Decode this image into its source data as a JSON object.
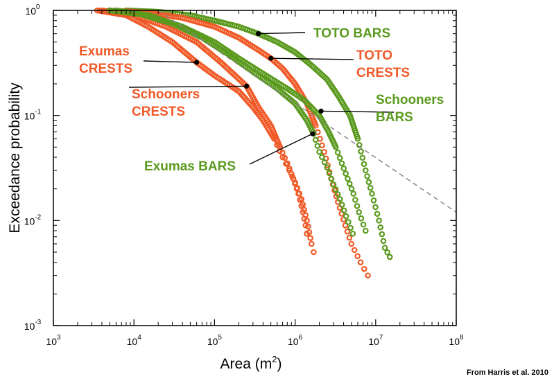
{
  "chart_data": {
    "type": "scatter",
    "title": "",
    "xlabel": "Area (m",
    "xlabel_sup": "2",
    "xlabel_close": ")",
    "ylabel": "Exceedance probability",
    "xscale": "log",
    "yscale": "log",
    "xlim": [
      1000,
      100000000
    ],
    "ylim": [
      0.001,
      1
    ],
    "x_ticks": [
      {
        "base": "10",
        "exp": "3",
        "value": 1000
      },
      {
        "base": "10",
        "exp": "4",
        "value": 10000
      },
      {
        "base": "10",
        "exp": "5",
        "value": 100000
      },
      {
        "base": "10",
        "exp": "6",
        "value": 1000000
      },
      {
        "base": "10",
        "exp": "7",
        "value": 10000000
      },
      {
        "base": "10",
        "exp": "8",
        "value": 100000000
      }
    ],
    "y_ticks": [
      {
        "base": "10",
        "exp": "0",
        "value": 1
      },
      {
        "base": "10",
        "exp": "-1",
        "value": 0.1
      },
      {
        "base": "10",
        "exp": "-2",
        "value": 0.01
      },
      {
        "base": "10",
        "exp": "-3",
        "value": 0.001
      }
    ],
    "grid": false,
    "reference_line": {
      "style": "dashed",
      "color": "#888888",
      "from": [
        20000,
        1.0
      ],
      "to": [
        100000000,
        0.012
      ]
    },
    "series": [
      {
        "key": "toto_bars",
        "label_lines": [
          "TOTO BARS"
        ],
        "color": "#5a9a1e",
        "points": [
          [
            8000,
            1
          ],
          [
            20000,
            0.97
          ],
          [
            50000,
            0.9
          ],
          [
            100000,
            0.8
          ],
          [
            200000,
            0.7
          ],
          [
            350000,
            0.6
          ],
          [
            600000,
            0.5
          ],
          [
            1000000,
            0.4
          ],
          [
            1600000,
            0.3
          ],
          [
            2500000,
            0.22
          ],
          [
            3500000,
            0.15
          ],
          [
            4800000,
            0.1
          ],
          [
            6000000,
            0.06
          ],
          [
            7500000,
            0.03
          ],
          [
            9000000,
            0.018
          ],
          [
            11000000,
            0.01
          ],
          [
            13000000,
            0.0055
          ],
          [
            15000000,
            0.0045
          ]
        ],
        "marker": [
          350000,
          0.6
        ]
      },
      {
        "key": "toto_crests",
        "label_lines": [
          "TOTO",
          "CRESTS"
        ],
        "color": "#f05a28",
        "points": [
          [
            5000,
            1
          ],
          [
            15000,
            0.95
          ],
          [
            40000,
            0.85
          ],
          [
            100000,
            0.7
          ],
          [
            200000,
            0.55
          ],
          [
            350000,
            0.42
          ],
          [
            500000,
            0.35
          ],
          [
            700000,
            0.28
          ],
          [
            1000000,
            0.2
          ],
          [
            1400000,
            0.13
          ],
          [
            1800000,
            0.08
          ],
          [
            2300000,
            0.045
          ],
          [
            2800000,
            0.025
          ],
          [
            3400000,
            0.015
          ],
          [
            4200000,
            0.009
          ],
          [
            5000000,
            0.006
          ],
          [
            6500000,
            0.004
          ],
          [
            8000000,
            0.003
          ]
        ],
        "marker": [
          500000,
          0.35
        ]
      },
      {
        "key": "schooners_bars",
        "label_lines": [
          "Schooners",
          "BARS"
        ],
        "color": "#5a9a1e",
        "points": [
          [
            6000,
            1
          ],
          [
            15000,
            0.9
          ],
          [
            40000,
            0.7
          ],
          [
            100000,
            0.5
          ],
          [
            200000,
            0.35
          ],
          [
            400000,
            0.25
          ],
          [
            800000,
            0.18
          ],
          [
            1300000,
            0.14
          ],
          [
            2000000,
            0.1
          ],
          [
            2600000,
            0.07
          ],
          [
            3200000,
            0.05
          ],
          [
            3800000,
            0.035
          ],
          [
            4500000,
            0.025
          ],
          [
            5300000,
            0.018
          ],
          [
            6200000,
            0.012
          ],
          [
            7500000,
            0.008
          ]
        ],
        "marker": [
          2100000,
          0.11
        ]
      },
      {
        "key": "exumas_crests",
        "label_lines": [
          "Exumas",
          "CRESTS"
        ],
        "color": "#f05a28",
        "points": [
          [
            3500,
            1
          ],
          [
            8000,
            0.9
          ],
          [
            15000,
            0.7
          ],
          [
            30000,
            0.5
          ],
          [
            60000,
            0.32
          ],
          [
            100000,
            0.24
          ],
          [
            200000,
            0.17
          ],
          [
            300000,
            0.12
          ],
          [
            400000,
            0.09
          ],
          [
            550000,
            0.06
          ],
          [
            700000,
            0.04
          ],
          [
            850000,
            0.03
          ],
          [
            1000000,
            0.023
          ],
          [
            1200000,
            0.016
          ],
          [
            1400000,
            0.01
          ],
          [
            1600000,
            0.006
          ],
          [
            1700000,
            0.005
          ]
        ],
        "marker": [
          60000,
          0.32
        ]
      },
      {
        "key": "schooners_crests",
        "label_lines": [
          "Schooners",
          "CRESTS"
        ],
        "color": "#f05a28",
        "points": [
          [
            4000,
            1
          ],
          [
            10000,
            0.9
          ],
          [
            25000,
            0.7
          ],
          [
            60000,
            0.5
          ],
          [
            120000,
            0.32
          ],
          [
            250000,
            0.19
          ],
          [
            350000,
            0.12
          ],
          [
            500000,
            0.08
          ],
          [
            650000,
            0.05
          ],
          [
            800000,
            0.035
          ],
          [
            950000,
            0.025
          ],
          [
            1100000,
            0.018
          ],
          [
            1250000,
            0.012
          ],
          [
            1350000,
            0.009
          ],
          [
            1400000,
            0.0075
          ]
        ],
        "marker": [
          250000,
          0.19
        ]
      },
      {
        "key": "exumas_bars",
        "label_lines": [
          "Exumas BARS"
        ],
        "color": "#5a9a1e",
        "points": [
          [
            5000,
            1
          ],
          [
            12000,
            0.92
          ],
          [
            30000,
            0.75
          ],
          [
            70000,
            0.55
          ],
          [
            150000,
            0.38
          ],
          [
            300000,
            0.26
          ],
          [
            600000,
            0.18
          ],
          [
            1000000,
            0.13
          ],
          [
            1400000,
            0.09
          ],
          [
            1700000,
            0.067
          ],
          [
            2000000,
            0.045
          ],
          [
            2500000,
            0.032
          ],
          [
            3000000,
            0.022
          ],
          [
            3600000,
            0.016
          ],
          [
            4300000,
            0.011
          ],
          [
            5200000,
            0.0075
          ]
        ],
        "marker": [
          1650000,
          0.067
        ]
      }
    ]
  },
  "credit": "From Harris et al. 2010"
}
